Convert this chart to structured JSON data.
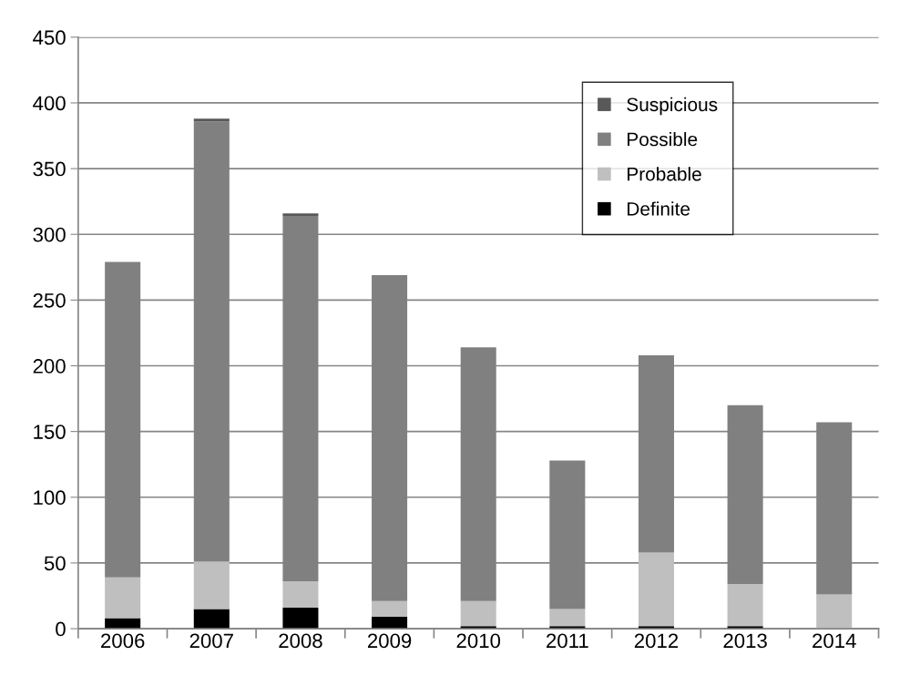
{
  "chart_data": {
    "type": "bar",
    "stacked": true,
    "categories": [
      "2006",
      "2007",
      "2008",
      "2009",
      "2010",
      "2011",
      "2012",
      "2013",
      "2014"
    ],
    "series": [
      {
        "name": "Definite",
        "color": "#000000",
        "values": [
          8,
          15,
          16,
          9,
          2,
          2,
          2,
          2,
          0
        ]
      },
      {
        "name": "Probable",
        "color": "#bfbfbf",
        "values": [
          31,
          36,
          20,
          12,
          19,
          13,
          56,
          32,
          26
        ]
      },
      {
        "name": "Possible",
        "color": "#808080",
        "values": [
          240,
          335,
          278,
          248,
          193,
          113,
          150,
          136,
          131
        ]
      },
      {
        "name": "Suspicious",
        "color": "#595959",
        "values": [
          0,
          2,
          2,
          0,
          0,
          0,
          0,
          0,
          0
        ]
      }
    ],
    "ylim": [
      0,
      450
    ],
    "yticks": [
      0,
      50,
      100,
      150,
      200,
      250,
      300,
      350,
      400,
      450
    ],
    "grid": "y",
    "legend": "top right"
  }
}
